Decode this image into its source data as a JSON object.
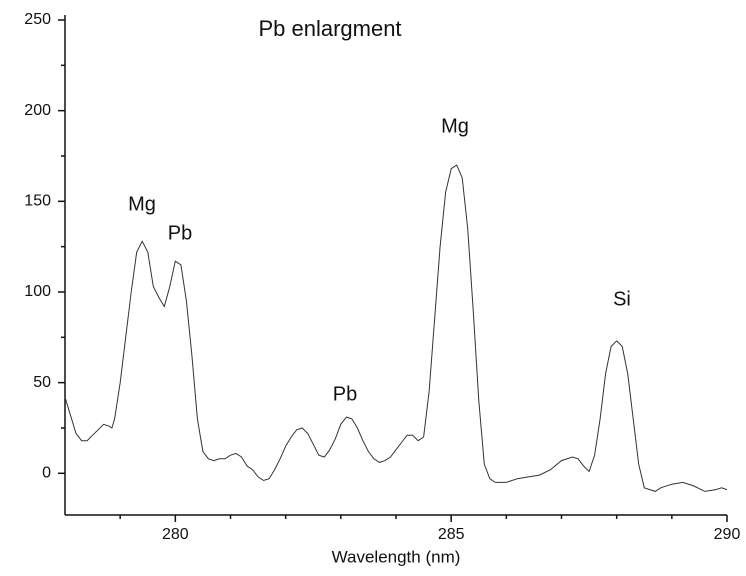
{
  "chart_data": {
    "type": "line",
    "title": "Pb enlargment",
    "xlabel": "Wavelength (nm)",
    "x": [
      278.0,
      278.1,
      278.2,
      278.3,
      278.4,
      278.5,
      278.6,
      278.7,
      278.8,
      278.85,
      278.9,
      279.0,
      279.1,
      279.2,
      279.3,
      279.4,
      279.5,
      279.6,
      279.7,
      279.8,
      279.9,
      280.0,
      280.1,
      280.2,
      280.3,
      280.4,
      280.5,
      280.6,
      280.7,
      280.8,
      280.9,
      281.0,
      281.1,
      281.2,
      281.3,
      281.4,
      281.5,
      281.6,
      281.7,
      281.8,
      281.9,
      282.0,
      282.1,
      282.2,
      282.3,
      282.4,
      282.5,
      282.6,
      282.7,
      282.8,
      282.9,
      283.0,
      283.1,
      283.2,
      283.3,
      283.4,
      283.5,
      283.6,
      283.7,
      283.8,
      283.9,
      284.0,
      284.1,
      284.2,
      284.3,
      284.4,
      284.5,
      284.6,
      284.7,
      284.8,
      284.9,
      285.0,
      285.1,
      285.2,
      285.3,
      285.4,
      285.5,
      285.6,
      285.7,
      285.8,
      286.0,
      286.2,
      286.4,
      286.6,
      286.8,
      287.0,
      287.2,
      287.3,
      287.4,
      287.5,
      287.6,
      287.7,
      287.8,
      287.9,
      288.0,
      288.1,
      288.2,
      288.3,
      288.4,
      288.5,
      288.7,
      288.8,
      289.0,
      289.2,
      289.4,
      289.6,
      289.8,
      289.9,
      290.0
    ],
    "series": [
      {
        "color": "#333333",
        "values": [
          42,
          32,
          22,
          18,
          18,
          21,
          24,
          27,
          26,
          25,
          30,
          50,
          75,
          100,
          122,
          128,
          122,
          103,
          97,
          92,
          103,
          117,
          115,
          95,
          65,
          30,
          12,
          8,
          7,
          8,
          8,
          10,
          11,
          9,
          4,
          2,
          -2,
          -4,
          -3,
          2,
          8,
          15,
          20,
          24,
          25,
          22,
          16,
          10,
          9,
          13,
          19,
          27,
          31,
          30,
          25,
          18,
          12,
          8,
          6,
          7,
          9,
          13,
          17,
          21,
          21,
          18,
          20,
          45,
          85,
          125,
          155,
          168,
          170,
          163,
          135,
          90,
          40,
          5,
          -3,
          -5,
          -5,
          -3,
          -2,
          -1,
          2,
          7,
          9,
          8,
          4,
          1,
          10,
          30,
          55,
          70,
          73,
          70,
          55,
          30,
          5,
          -8,
          -10,
          -8,
          -6,
          -5,
          -7,
          -10,
          -9,
          -8,
          -9
        ]
      }
    ],
    "annotations": [
      "Mg",
      "Pb",
      "Pb",
      "Mg",
      "Si"
    ],
    "xlim": [
      278,
      290
    ],
    "xticks": [
      280,
      285,
      290
    ],
    "xminorticks": [
      279,
      281,
      282,
      283,
      284,
      286,
      287,
      288,
      289
    ],
    "ylim": [
      -23,
      250
    ],
    "yticks": [
      0,
      50,
      100,
      150,
      200,
      250
    ],
    "yminorticks": [
      25,
      75,
      125,
      175,
      225
    ]
  }
}
